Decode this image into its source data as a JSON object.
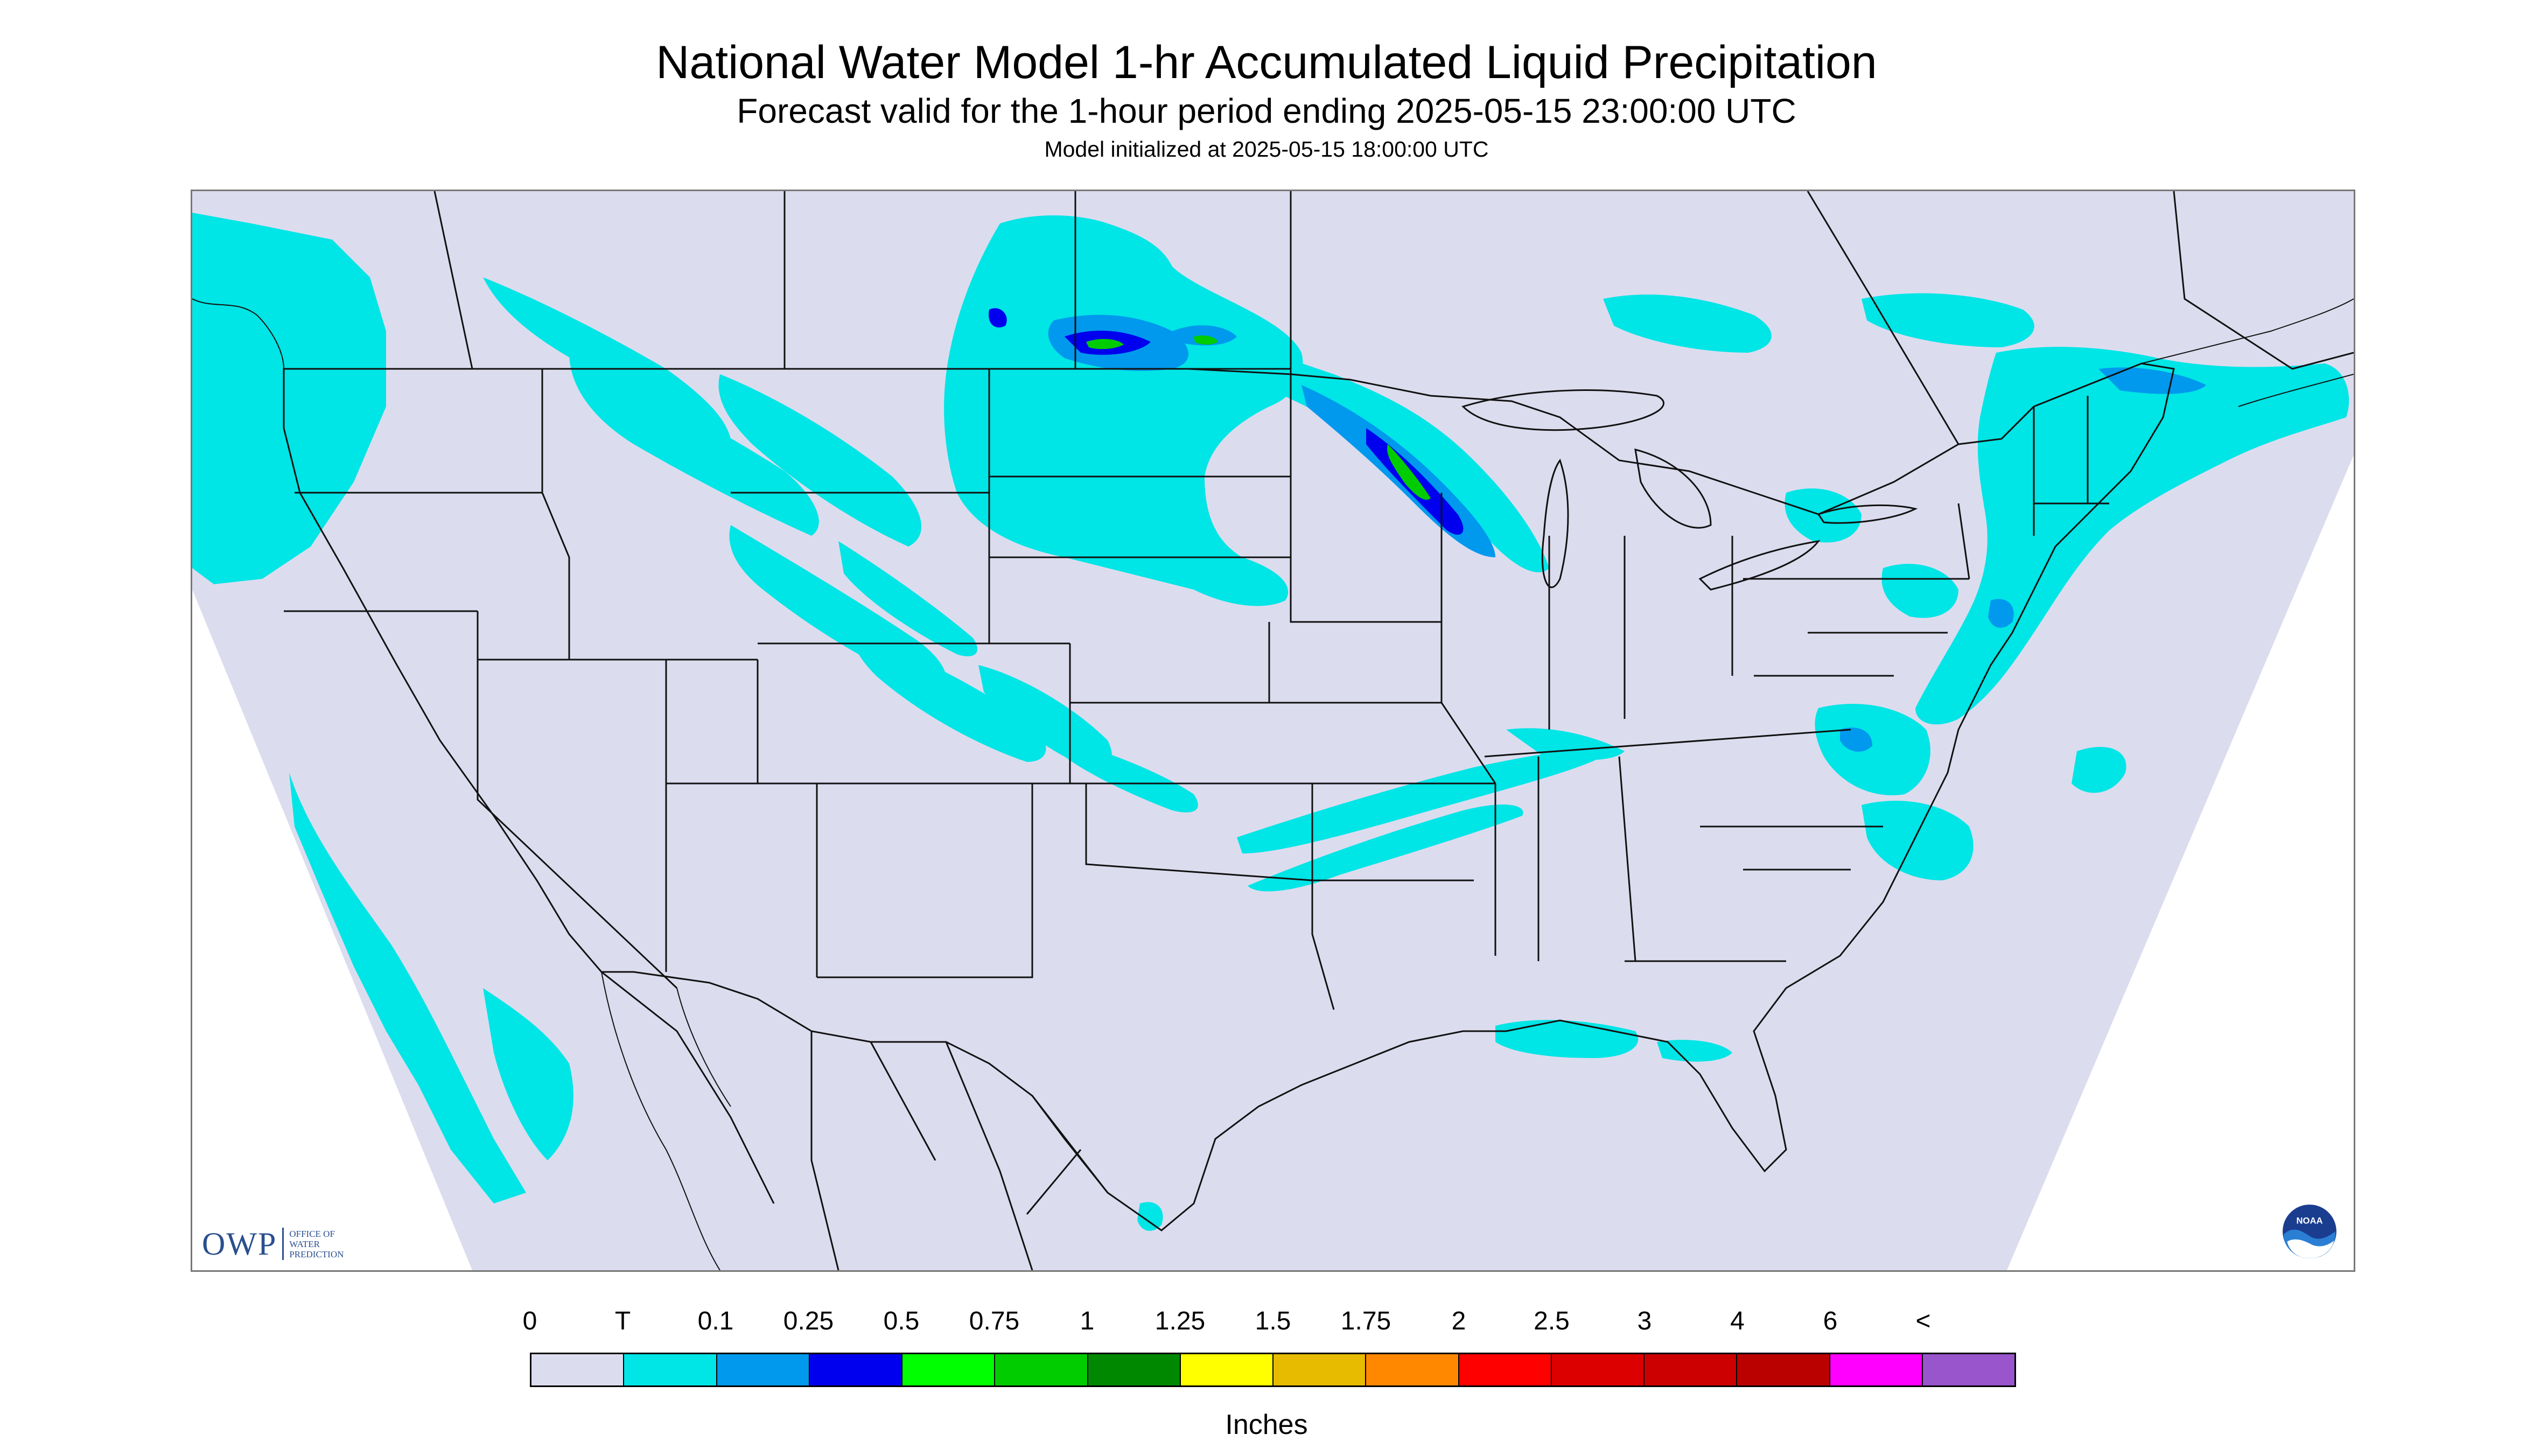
{
  "header": {
    "title": "National Water Model 1-hr Accumulated Liquid Precipitation",
    "subtitle": "Forecast valid for the 1-hour period ending 2025-05-15 23:00:00 UTC",
    "init": "Model initialized at 2025-05-15 18:00:00 UTC"
  },
  "map": {
    "background_color": "#dcdcef",
    "outside_color": "#ffffff",
    "border_color": "#111111"
  },
  "logos": {
    "owp": {
      "letters": "OWP",
      "name": "OFFICE OF WATER PREDICTION",
      "icon": "owp-logo-icon"
    },
    "noaa": {
      "icon": "noaa-logo-icon",
      "text": "NOAA"
    }
  },
  "legend": {
    "labels": [
      "0",
      "T",
      "0.1",
      "0.25",
      "0.5",
      "0.75",
      "1",
      "1.25",
      "1.5",
      "1.75",
      "2",
      "2.5",
      "3",
      "4",
      "6",
      "<"
    ],
    "colors": [
      "#dcdcef",
      "#00e5e5",
      "#0099ee",
      "#0000ee",
      "#00ff00",
      "#00cc00",
      "#008800",
      "#ffff00",
      "#e6bb00",
      "#ff8800",
      "#ff0000",
      "#dd0000",
      "#cc0000",
      "#bb0000",
      "#ff00ff",
      "#9955cc"
    ],
    "units": "Inches"
  },
  "precip_colors": {
    "trace": "#00e5e5",
    "light": "#0099ee",
    "moderate": "#0000ee",
    "heavy": "#00cc00",
    "heavier": "#008800"
  }
}
